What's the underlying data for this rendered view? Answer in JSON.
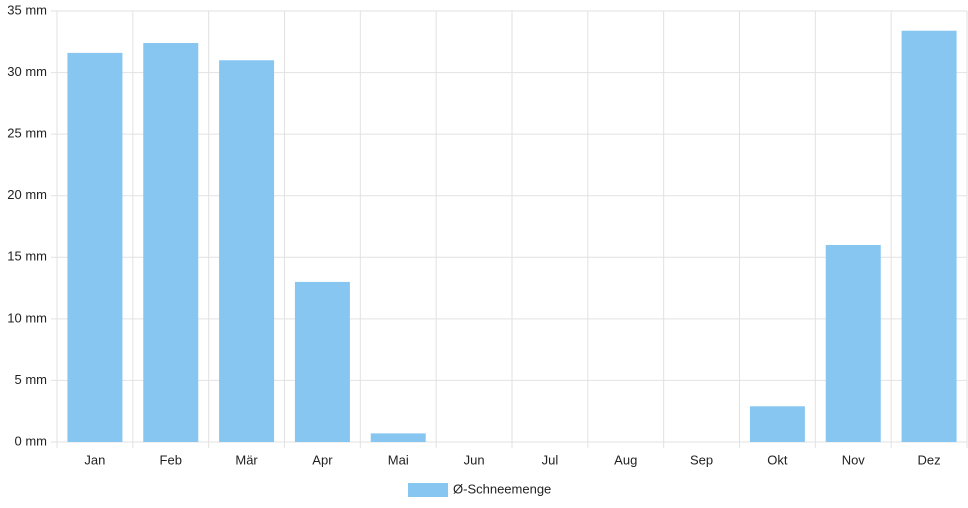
{
  "chart_data": {
    "type": "bar",
    "categories": [
      "Jan",
      "Feb",
      "Mär",
      "Apr",
      "Mai",
      "Jun",
      "Jul",
      "Aug",
      "Sep",
      "Okt",
      "Nov",
      "Dez"
    ],
    "series": [
      {
        "name": "Ø-Schneemenge",
        "color": "#88c6f2",
        "values": [
          31.6,
          32.4,
          31.0,
          13.0,
          0.7,
          0,
          0,
          0,
          0,
          2.9,
          16.0,
          33.4
        ]
      }
    ],
    "ylim": [
      0,
      35
    ],
    "yticks": [
      {
        "value": 0,
        "label": "0 mm"
      },
      {
        "value": 5,
        "label": "5 mm"
      },
      {
        "value": 10,
        "label": "10 mm"
      },
      {
        "value": 15,
        "label": "15 mm"
      },
      {
        "value": 20,
        "label": "20 mm"
      },
      {
        "value": 25,
        "label": "25 mm"
      },
      {
        "value": 30,
        "label": "30 mm"
      },
      {
        "value": 35,
        "label": "35 mm"
      }
    ],
    "grid": true,
    "legend": "bottom"
  }
}
